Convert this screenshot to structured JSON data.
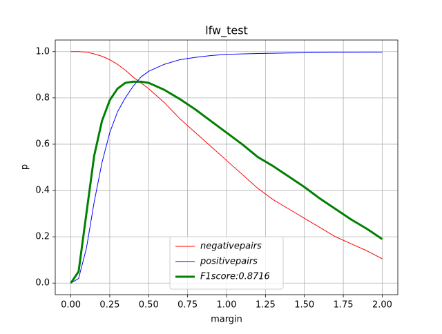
{
  "chart_data": {
    "type": "line",
    "title": "lfw_test",
    "x_label": "margin",
    "y_label": "p",
    "x": [
      0,
      0.05,
      0.1,
      0.15,
      0.2,
      0.25,
      0.3,
      0.35,
      0.4,
      0.45,
      0.5,
      0.6,
      0.7,
      0.8,
      0.9,
      1.0,
      1.1,
      1.2,
      1.3,
      1.4,
      1.5,
      1.6,
      1.7,
      1.8,
      1.9,
      2.0
    ],
    "series": [
      {
        "name": "negativepairs",
        "color": "#ff0000",
        "width": 1,
        "values": [
          1,
          1,
          0.998,
          0.99,
          0.98,
          0.965,
          0.945,
          0.92,
          0.89,
          0.865,
          0.84,
          0.78,
          0.71,
          0.65,
          0.59,
          0.53,
          0.47,
          0.41,
          0.36,
          0.32,
          0.28,
          0.24,
          0.2,
          0.17,
          0.14,
          0.105
        ]
      },
      {
        "name": "positivepairs",
        "color": "#0000ff",
        "width": 1,
        "values": [
          0,
          0.02,
          0.15,
          0.35,
          0.52,
          0.65,
          0.74,
          0.8,
          0.85,
          0.89,
          0.915,
          0.945,
          0.965,
          0.975,
          0.983,
          0.988,
          0.99,
          0.992,
          0.993,
          0.994,
          0.995,
          0.996,
          0.997,
          0.997,
          0.998,
          0.998
        ]
      },
      {
        "name": "F1score:0.8716",
        "color": "#008000",
        "width": 3,
        "values": [
          0,
          0.05,
          0.3,
          0.55,
          0.7,
          0.79,
          0.84,
          0.865,
          0.87,
          0.87,
          0.865,
          0.835,
          0.795,
          0.75,
          0.7,
          0.65,
          0.6,
          0.545,
          0.505,
          0.46,
          0.415,
          0.365,
          0.32,
          0.275,
          0.235,
          0.19
        ]
      }
    ],
    "xlim": [
      -0.1,
      2.1
    ],
    "ylim": [
      -0.05,
      1.05
    ],
    "xticks": [
      {
        "value": 0,
        "label": "0.00"
      },
      {
        "value": 0.25,
        "label": "0.25"
      },
      {
        "value": 0.5,
        "label": "0.50"
      },
      {
        "value": 0.75,
        "label": "0.75"
      },
      {
        "value": 1,
        "label": "1.00"
      },
      {
        "value": 1.25,
        "label": "1.25"
      },
      {
        "value": 1.5,
        "label": "1.50"
      },
      {
        "value": 1.75,
        "label": "1.75"
      },
      {
        "value": 2,
        "label": "2.00"
      }
    ],
    "yticks": [
      {
        "value": 0,
        "label": "0.0"
      },
      {
        "value": 0.2,
        "label": "0.2"
      },
      {
        "value": 0.4,
        "label": "0.4"
      },
      {
        "value": 0.6,
        "label": "0.6"
      },
      {
        "value": 0.8,
        "label": "0.8"
      },
      {
        "value": 1,
        "label": "1.0"
      }
    ],
    "grid": true,
    "legend": "lower center"
  }
}
